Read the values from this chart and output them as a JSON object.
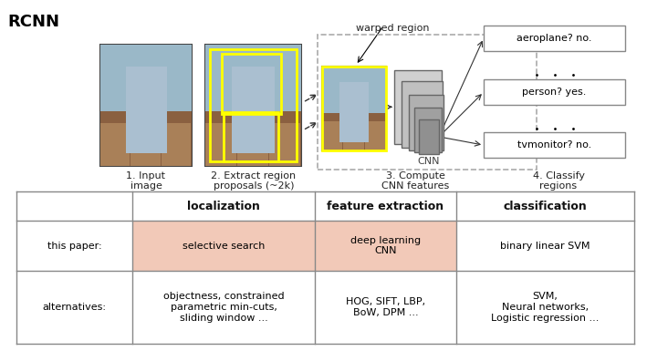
{
  "title": "RCNN",
  "background_color": "#ffffff",
  "table_header": [
    "localization",
    "feature extraction",
    "classification"
  ],
  "table_row1_label": "this paper:",
  "table_row1_data": [
    "selective search",
    "deep learning\nCNN",
    "binary linear SVM"
  ],
  "table_row2_label": "alternatives:",
  "table_row2_data": [
    "objectness, constrained\nparametric min-cuts,\nsliding window ...",
    "HOG, SIFT, LBP,\nBoW, DPM ...",
    "SVM,\nNeural networks,\nLogistic regression ..."
  ],
  "highlight_color_loc": "#f2c9b8",
  "highlight_color_feat": "#f2c9b8",
  "step_labels": [
    "1. Input\nimage",
    "2. Extract region\nproposals (~2k)",
    "3. Compute\nCNN features",
    "4. Classify\nregions"
  ],
  "warped_region_label": "warped region",
  "classify_boxes": [
    "aeroplane? no.",
    "person? yes.",
    "tvmonitor? no."
  ],
  "CNN_label": "CNN",
  "table_border_color": "#888888",
  "header_font_size": 9,
  "body_font_size": 8,
  "step_font_size": 8,
  "img1_colors": {
    "bg": "#8B7355",
    "upper": "#7a9aaa",
    "lower": "#9a7055",
    "person": "#8aafbf"
  },
  "img2_colors": {
    "bg": "#8B7355",
    "upper": "#7a9aaa",
    "lower": "#9a7055",
    "person": "#8aafbf"
  },
  "cnn_colors": [
    "#d0d0d0",
    "#c0c0c0",
    "#b0b0b0",
    "#a0a0a0",
    "#909090"
  ],
  "yellow": "#ffff00",
  "dashed_color": "#aaaaaa",
  "arrow_color": "#333333"
}
